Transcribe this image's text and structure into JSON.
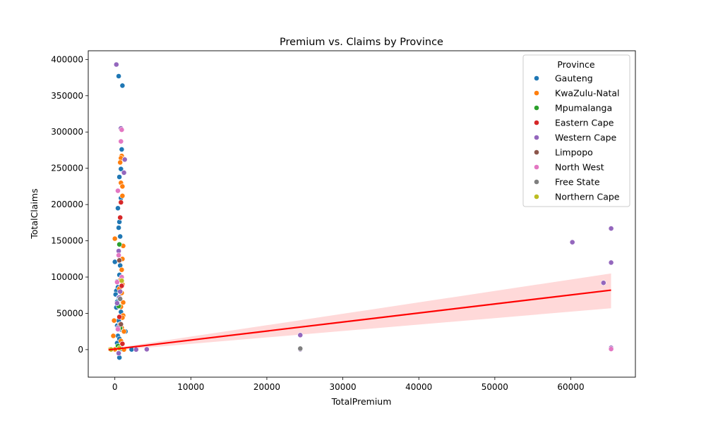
{
  "chart_data": {
    "type": "scatter",
    "title": "Premium vs. Claims by Province",
    "xlabel": "TotalPremium",
    "ylabel": "TotalClaims",
    "xlim": [
      -3500,
      68500
    ],
    "ylim": [
      -38000,
      412000
    ],
    "xticks": [
      0,
      10000,
      20000,
      30000,
      40000,
      50000,
      60000
    ],
    "yticks": [
      0,
      50000,
      100000,
      150000,
      200000,
      250000,
      300000,
      350000,
      400000
    ],
    "grid": false,
    "legend": {
      "title": "Province",
      "position": "top-right",
      "entries": [
        "Gauteng",
        "KwaZulu-Natal",
        "Mpumalanga",
        "Eastern Cape",
        "Western Cape",
        "Limpopo",
        "North West",
        "Free State",
        "Northern Cape"
      ]
    },
    "colors": {
      "Gauteng": "#1f77b4",
      "KwaZulu-Natal": "#ff7f0e",
      "Mpumalanga": "#2ca02c",
      "Eastern Cape": "#d62728",
      "Western Cape": "#9467bd",
      "Limpopo": "#8c564b",
      "North West": "#e377c2",
      "Free State": "#7f7f7f",
      "Northern Cape": "#bcbd22"
    },
    "regression": {
      "x": [
        -800,
        65300
      ],
      "y": [
        -300,
        82000
      ],
      "ci_upper": [
        900,
        105000
      ],
      "ci_lower": [
        -1700,
        57000
      ],
      "color": "#ff0000"
    },
    "series": [
      {
        "name": "Gauteng",
        "points": [
          [
            500,
            377000
          ],
          [
            1000,
            364000
          ],
          [
            900,
            276000
          ],
          [
            800,
            249000
          ],
          [
            600,
            238000
          ],
          [
            800,
            209000
          ],
          [
            400,
            195000
          ],
          [
            600,
            176000
          ],
          [
            500,
            168000
          ],
          [
            700,
            156000
          ],
          [
            0,
            121000
          ],
          [
            700,
            116000
          ],
          [
            600,
            103000
          ],
          [
            300,
            94000
          ],
          [
            400,
            86000
          ],
          [
            200,
            81000
          ],
          [
            100,
            76000
          ],
          [
            500,
            72000
          ],
          [
            300,
            66000
          ],
          [
            600,
            60000
          ],
          [
            200,
            58000
          ],
          [
            800,
            52000
          ],
          [
            500,
            40000
          ],
          [
            300,
            33000
          ],
          [
            700,
            28000
          ],
          [
            1400,
            25000
          ],
          [
            400,
            19000
          ],
          [
            600,
            15000
          ],
          [
            300,
            9000
          ],
          [
            500,
            4000
          ],
          [
            900,
            1000
          ],
          [
            2200,
            200
          ],
          [
            600,
            -11000
          ]
        ]
      },
      {
        "name": "KwaZulu-Natal",
        "points": [
          [
            900,
            267000
          ],
          [
            800,
            264000
          ],
          [
            700,
            258000
          ],
          [
            800,
            230000
          ],
          [
            1000,
            225000
          ],
          [
            1000,
            212000
          ],
          [
            0,
            153000
          ],
          [
            1100,
            143000
          ],
          [
            1000,
            125000
          ],
          [
            900,
            110000
          ],
          [
            800,
            97000
          ],
          [
            1000,
            90000
          ],
          [
            600,
            84000
          ],
          [
            900,
            78000
          ],
          [
            1100,
            65000
          ],
          [
            800,
            59000
          ],
          [
            1100,
            47000
          ],
          [
            1000,
            44000
          ],
          [
            -100,
            40000
          ],
          [
            700,
            35000
          ],
          [
            900,
            30000
          ],
          [
            1200,
            25000
          ],
          [
            -200,
            19000
          ],
          [
            800,
            12000
          ],
          [
            1000,
            8000
          ],
          [
            -600,
            500
          ],
          [
            0,
            300
          ],
          [
            1200,
            100
          ]
        ]
      },
      {
        "name": "Mpumalanga",
        "points": [
          [
            600,
            145000
          ],
          [
            500,
            60000
          ],
          [
            700,
            30000
          ],
          [
            400,
            5000
          ]
        ]
      },
      {
        "name": "Eastern Cape",
        "points": [
          [
            800,
            203000
          ],
          [
            700,
            182000
          ],
          [
            900,
            88000
          ],
          [
            600,
            45000
          ],
          [
            1000,
            8000
          ]
        ]
      },
      {
        "name": "Western Cape",
        "points": [
          [
            200,
            393000
          ],
          [
            800,
            305000
          ],
          [
            1300,
            262000
          ],
          [
            1200,
            244000
          ],
          [
            500,
            136000
          ],
          [
            700,
            80000
          ],
          [
            600,
            72000
          ],
          [
            300,
            64000
          ],
          [
            400,
            30000
          ],
          [
            500,
            -5000
          ],
          [
            2800,
            100
          ],
          [
            4200,
            500
          ],
          [
            24400,
            20000
          ],
          [
            24400,
            500
          ],
          [
            60200,
            148000
          ],
          [
            65300,
            167000
          ],
          [
            65300,
            120000
          ],
          [
            64300,
            92000
          ],
          [
            65300,
            2500
          ]
        ]
      },
      {
        "name": "Limpopo",
        "points": [
          [
            600,
            123000
          ],
          [
            800,
            35000
          ]
        ]
      },
      {
        "name": "North West",
        "points": [
          [
            800,
            287000
          ],
          [
            900,
            303000
          ],
          [
            400,
            219000
          ],
          [
            500,
            130000
          ],
          [
            300,
            93000
          ],
          [
            900,
            100000
          ],
          [
            400,
            28000
          ],
          [
            65300,
            800
          ]
        ]
      },
      {
        "name": "Free State",
        "points": [
          [
            700,
            70000
          ],
          [
            24400,
            1500
          ]
        ]
      },
      {
        "name": "Northern Cape",
        "points": [
          [
            900,
            95000
          ],
          [
            -500,
            200
          ],
          [
            600,
            2000
          ]
        ]
      }
    ]
  }
}
